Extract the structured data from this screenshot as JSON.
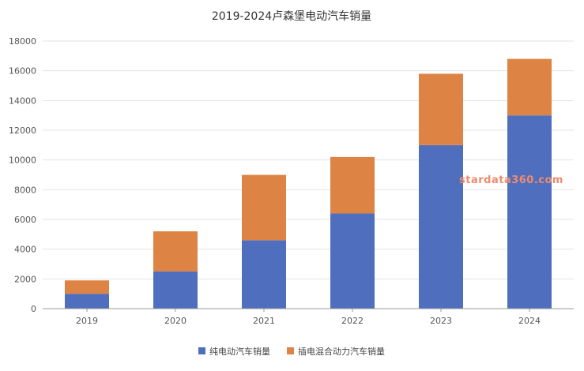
{
  "chart_data": {
    "type": "bar",
    "stacked": true,
    "title": "2019-2024卢森堡电动汽车销量",
    "xlabel": "",
    "ylabel": "",
    "categories": [
      "2019",
      "2020",
      "2021",
      "2022",
      "2023",
      "2024"
    ],
    "series": [
      {
        "name": "纯电动汽车销量",
        "color": "#4f6fbe",
        "values": [
          1000,
          2500,
          4600,
          6400,
          11000,
          13000
        ]
      },
      {
        "name": "插电混合动力汽车销量",
        "color": "#dd8444",
        "values": [
          900,
          2700,
          4400,
          3800,
          4800,
          3800
        ]
      }
    ],
    "ylim": [
      0,
      18000
    ],
    "yticks": [
      "0",
      "2000",
      "4000",
      "6000",
      "8000",
      "10000",
      "12000",
      "14000",
      "16000",
      "18000"
    ],
    "grid": true,
    "legend_position": "bottom",
    "watermark": "stardata360.com"
  }
}
